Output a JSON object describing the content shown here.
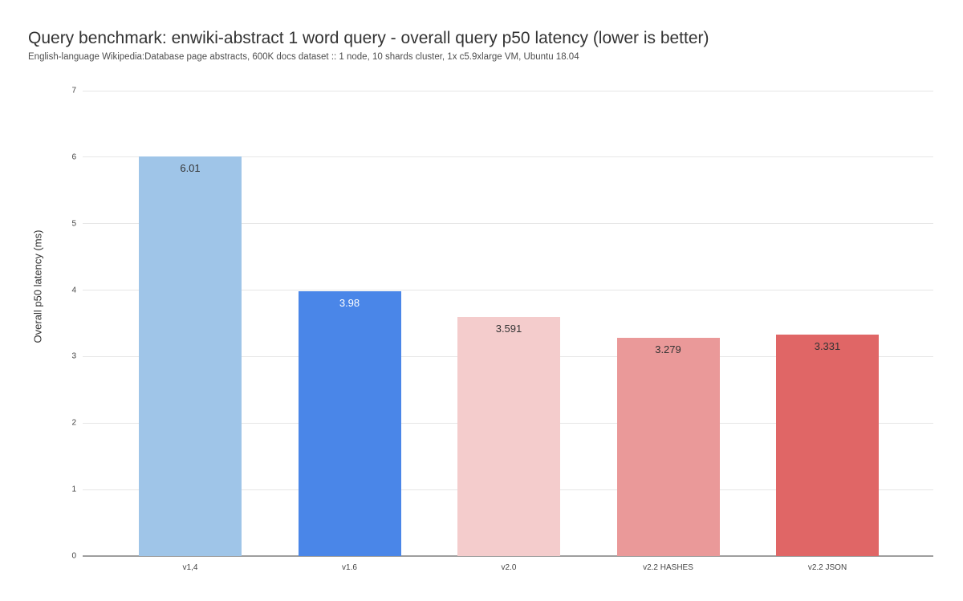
{
  "header": {
    "title": "Query benchmark: enwiki-abstract 1 word query - overall query p50 latency (lower is better)",
    "subtitle": "English-language Wikipedia:Database page abstracts, 600K docs dataset :: 1 node, 10 shards cluster, 1x c5.9xlarge VM, Ubuntu 18.04"
  },
  "chart_data": {
    "type": "bar",
    "title": "Query benchmark: enwiki-abstract 1 word query - overall query p50 latency (lower is better)",
    "subtitle": "English-language Wikipedia:Database page abstracts, 600K docs dataset :: 1 node, 10 shards cluster, 1x c5.9xlarge VM, Ubuntu 18.04",
    "categories": [
      "v1,4",
      "v1.6",
      "v2.0",
      "v2.2 HASHES",
      "v2.2 JSON"
    ],
    "values": [
      6.01,
      3.98,
      3.591,
      3.279,
      3.331
    ],
    "value_labels": [
      "6.01",
      "3.98",
      "3.591",
      "3.279",
      "3.331"
    ],
    "bar_colors": [
      "#9fc5e8",
      "#4a86e8",
      "#f4cccc",
      "#ea9999",
      "#e06666"
    ],
    "value_label_colors": [
      "#333333",
      "#ffffff",
      "#333333",
      "#333333",
      "#333333"
    ],
    "xlabel": "",
    "ylabel": "Overall p50 latency (ms)",
    "ylim": [
      0,
      7
    ],
    "yticks": [
      0,
      1,
      2,
      3,
      4,
      5,
      6,
      7
    ],
    "grid": true,
    "legend": "none",
    "colors_note": {
      "gridline": "#e6e6e6",
      "axis_baseline": "#9e9e9e",
      "tick_text": "#444444"
    }
  }
}
